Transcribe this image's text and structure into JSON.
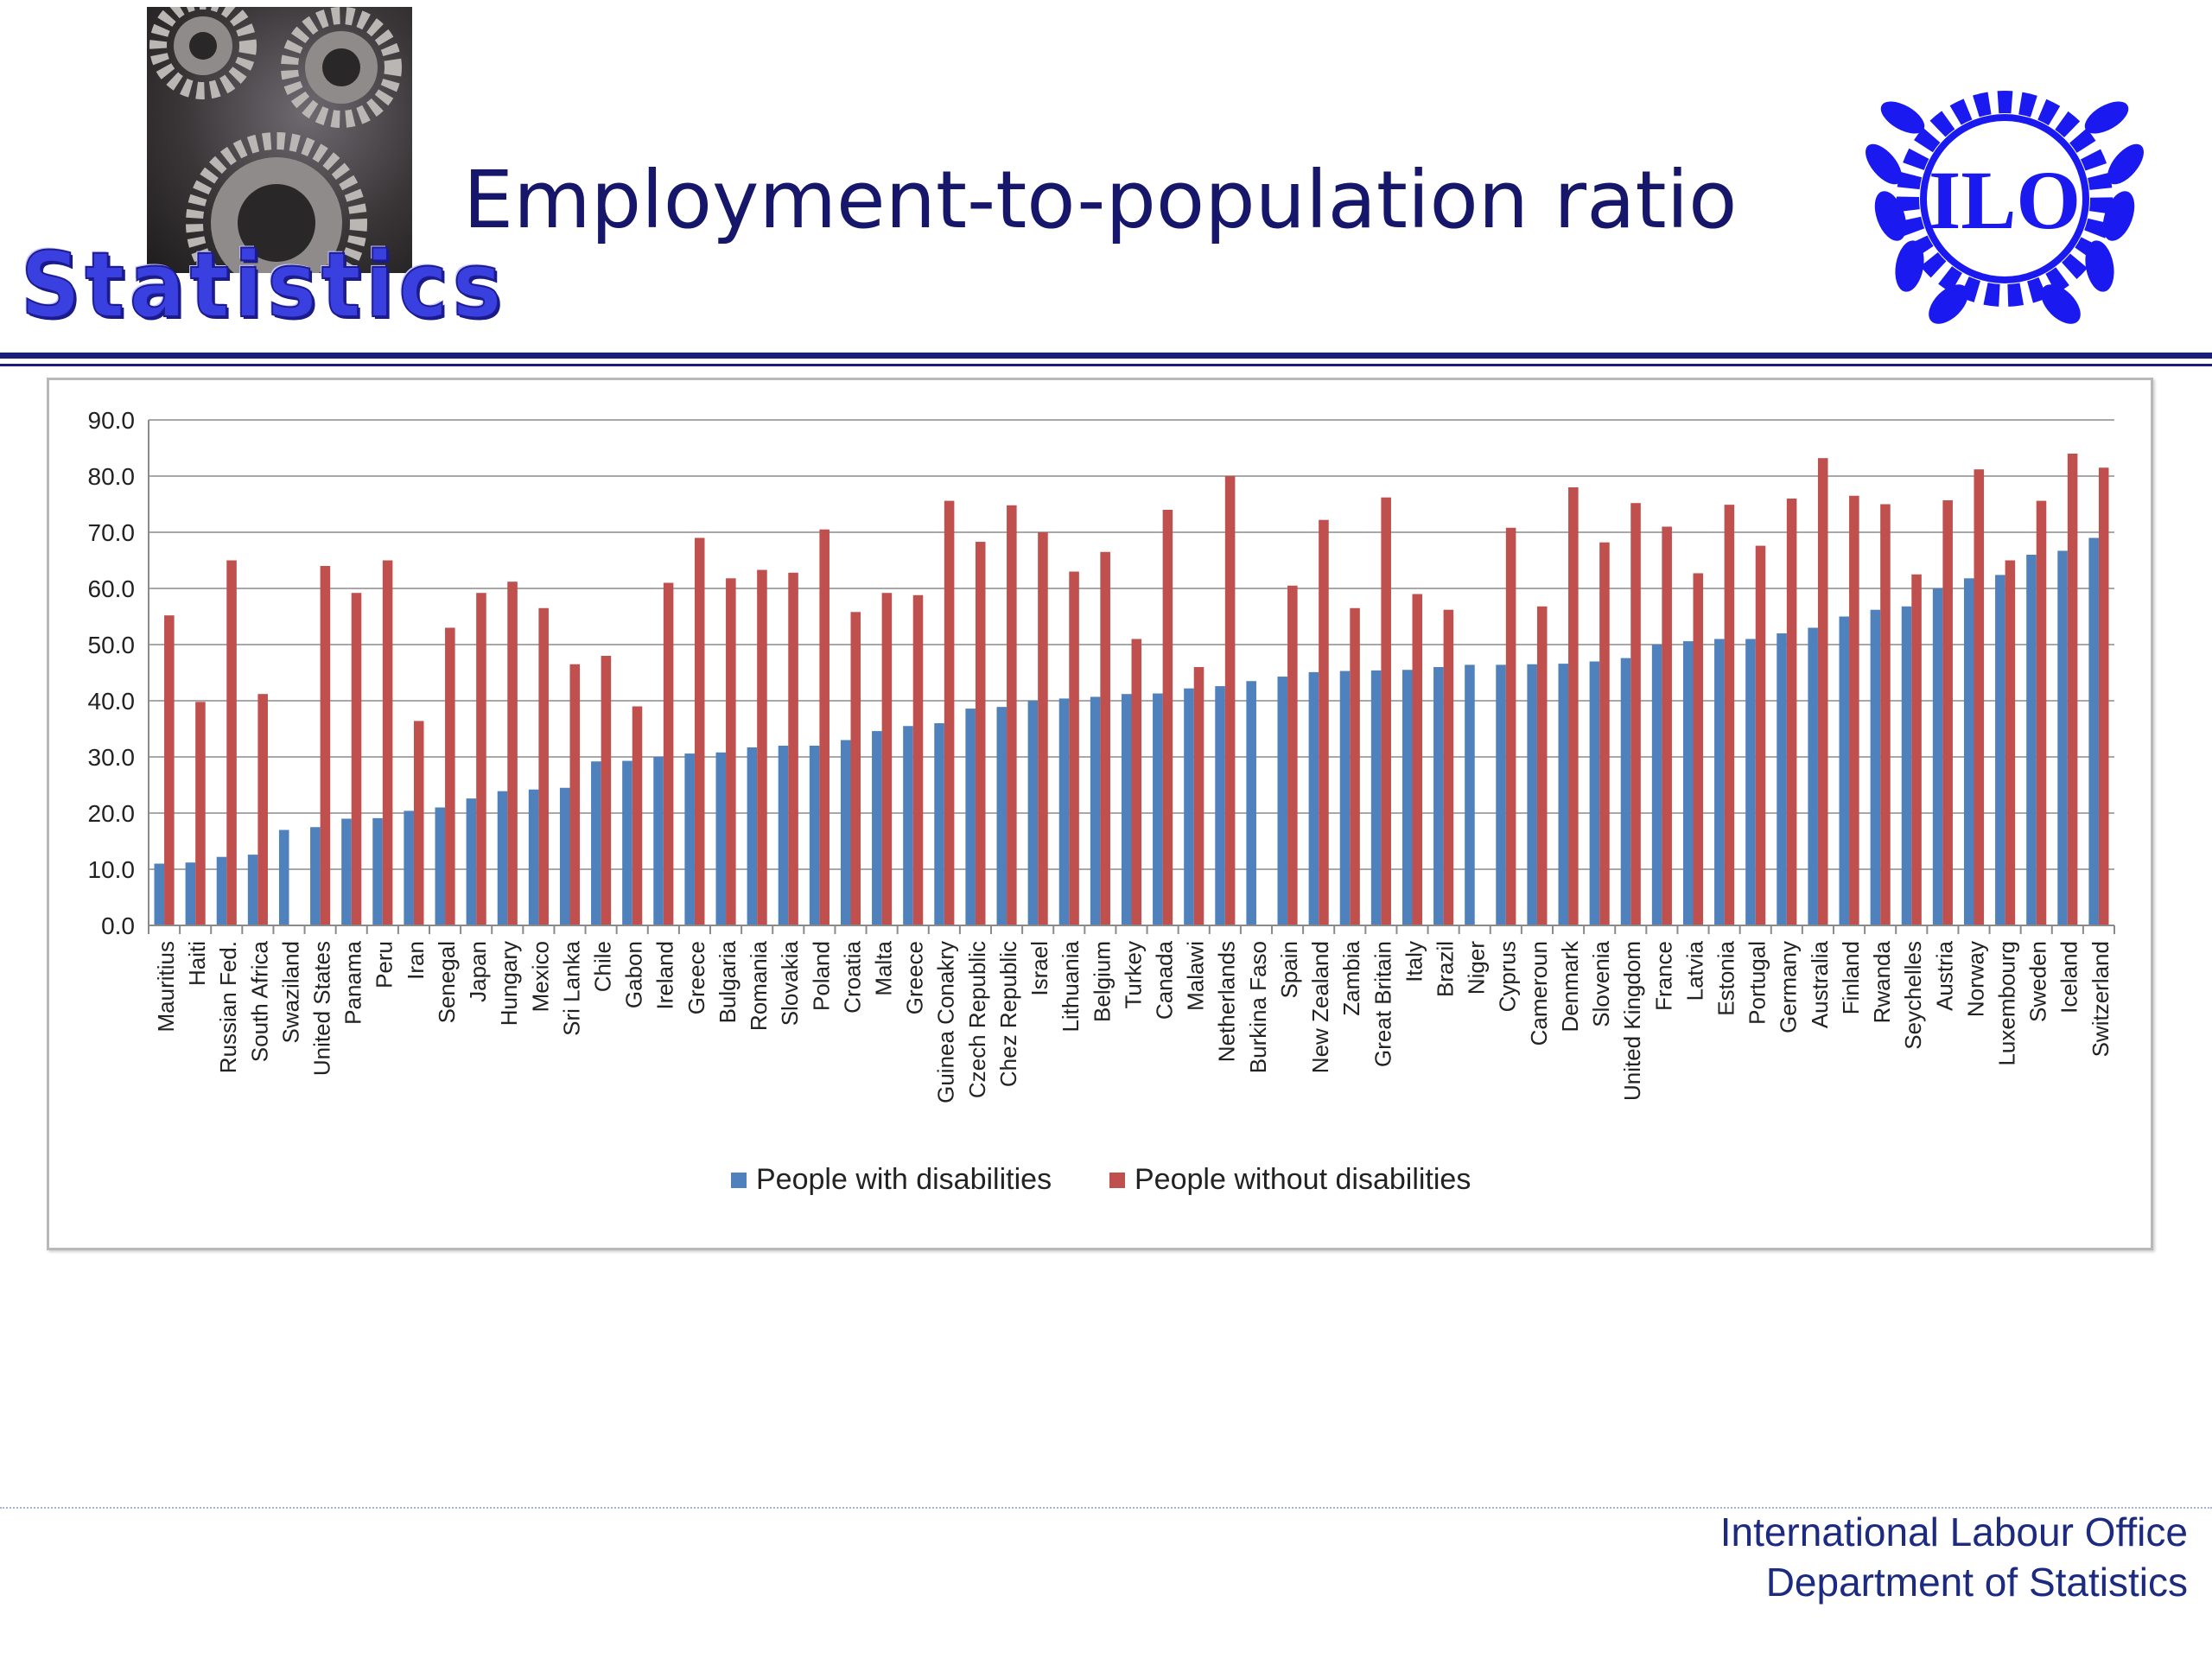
{
  "header": {
    "title": "Employment-to-population ratio",
    "statistics_word": "Statistics",
    "logo_text": "ILO"
  },
  "footer": {
    "line1": "International Labour Office",
    "line2": "Department of Statistics"
  },
  "colors": {
    "series_with": "#4f81bd",
    "series_without": "#c0504d",
    "title": "#16166a",
    "logo": "#1a1af0",
    "rule": "#1c1c7a"
  },
  "chart_data": {
    "type": "bar",
    "title": "",
    "xlabel": "",
    "ylabel": "",
    "ylim": [
      0,
      90
    ],
    "yticks": [
      "0.0",
      "10.0",
      "20.0",
      "30.0",
      "40.0",
      "50.0",
      "60.0",
      "70.0",
      "80.0",
      "90.0"
    ],
    "grid": true,
    "legend_position": "bottom",
    "categories": [
      "Mauritius",
      "Haiti",
      "Russian Fed.",
      "South Africa",
      "Swaziland",
      "United States",
      "Panama",
      "Peru",
      "Iran",
      "Senegal",
      "Japan",
      "Hungary",
      "Mexico",
      "Sri Lanka",
      "Chile",
      "Gabon",
      "Ireland",
      "Greece",
      "Bulgaria",
      "Romania",
      "Slovakia",
      "Poland",
      "Croatia",
      "Malta",
      "Greece",
      "Guinea Conakry",
      "Czech Republic",
      "Chez Republic",
      "Israel",
      "Lithuania",
      "Belgium",
      "Turkey",
      "Canada",
      "Malawi",
      "Netherlands",
      "Burkina Faso",
      "Spain",
      "New Zealand",
      "Zambia",
      "Great Britain",
      "Italy",
      "Brazil",
      "Niger",
      "Cyprus",
      "Cameroun",
      "Denmark",
      "Slovenia",
      "United Kingdom",
      "France",
      "Latvia",
      "Estonia",
      "Portugal",
      "Germany",
      "Australia",
      "Finland",
      "Rwanda",
      "Seychelles",
      "Austria",
      "Norway",
      "Luxembourg",
      "Sweden",
      "Iceland",
      "Switzerland"
    ],
    "series": [
      {
        "name": "People with disabilities",
        "color": "#4f81bd",
        "values": [
          11.0,
          11.2,
          12.2,
          12.6,
          17.0,
          17.5,
          19.0,
          19.1,
          20.4,
          21.0,
          22.6,
          23.9,
          24.2,
          24.5,
          29.2,
          29.3,
          30.0,
          30.6,
          30.8,
          31.7,
          32.0,
          32.0,
          33.0,
          34.6,
          35.5,
          36.0,
          38.6,
          38.9,
          40.0,
          40.4,
          40.7,
          41.2,
          41.3,
          42.2,
          42.6,
          43.5,
          44.3,
          45.1,
          45.3,
          45.4,
          45.5,
          46.0,
          46.4,
          46.4,
          46.5,
          46.6,
          47.0,
          47.6,
          50.0,
          50.6,
          51.0,
          51.0,
          52.0,
          53.0,
          55.0,
          56.2,
          56.8,
          60.0,
          61.8,
          62.4,
          66.0,
          66.7,
          69.0
        ]
      },
      {
        "name": "People without disabilities",
        "color": "#c0504d",
        "values": [
          55.2,
          39.8,
          65.0,
          41.2,
          null,
          64.0,
          59.2,
          65.0,
          36.4,
          53.0,
          59.2,
          61.2,
          56.5,
          46.5,
          48.0,
          39.0,
          61.0,
          69.0,
          61.8,
          63.3,
          62.8,
          70.5,
          55.8,
          59.2,
          58.8,
          75.6,
          68.3,
          74.8,
          70.0,
          63.0,
          66.5,
          51.0,
          74.0,
          46.0,
          80.0,
          null,
          60.5,
          72.2,
          56.5,
          76.2,
          59.0,
          56.2,
          null,
          70.8,
          56.8,
          78.0,
          68.2,
          75.2,
          71.0,
          62.7,
          74.9,
          67.6,
          76.0,
          83.2,
          76.5,
          75.0,
          62.5,
          75.7,
          81.2,
          65.0,
          75.6,
          84.0,
          81.5
        ]
      }
    ]
  }
}
